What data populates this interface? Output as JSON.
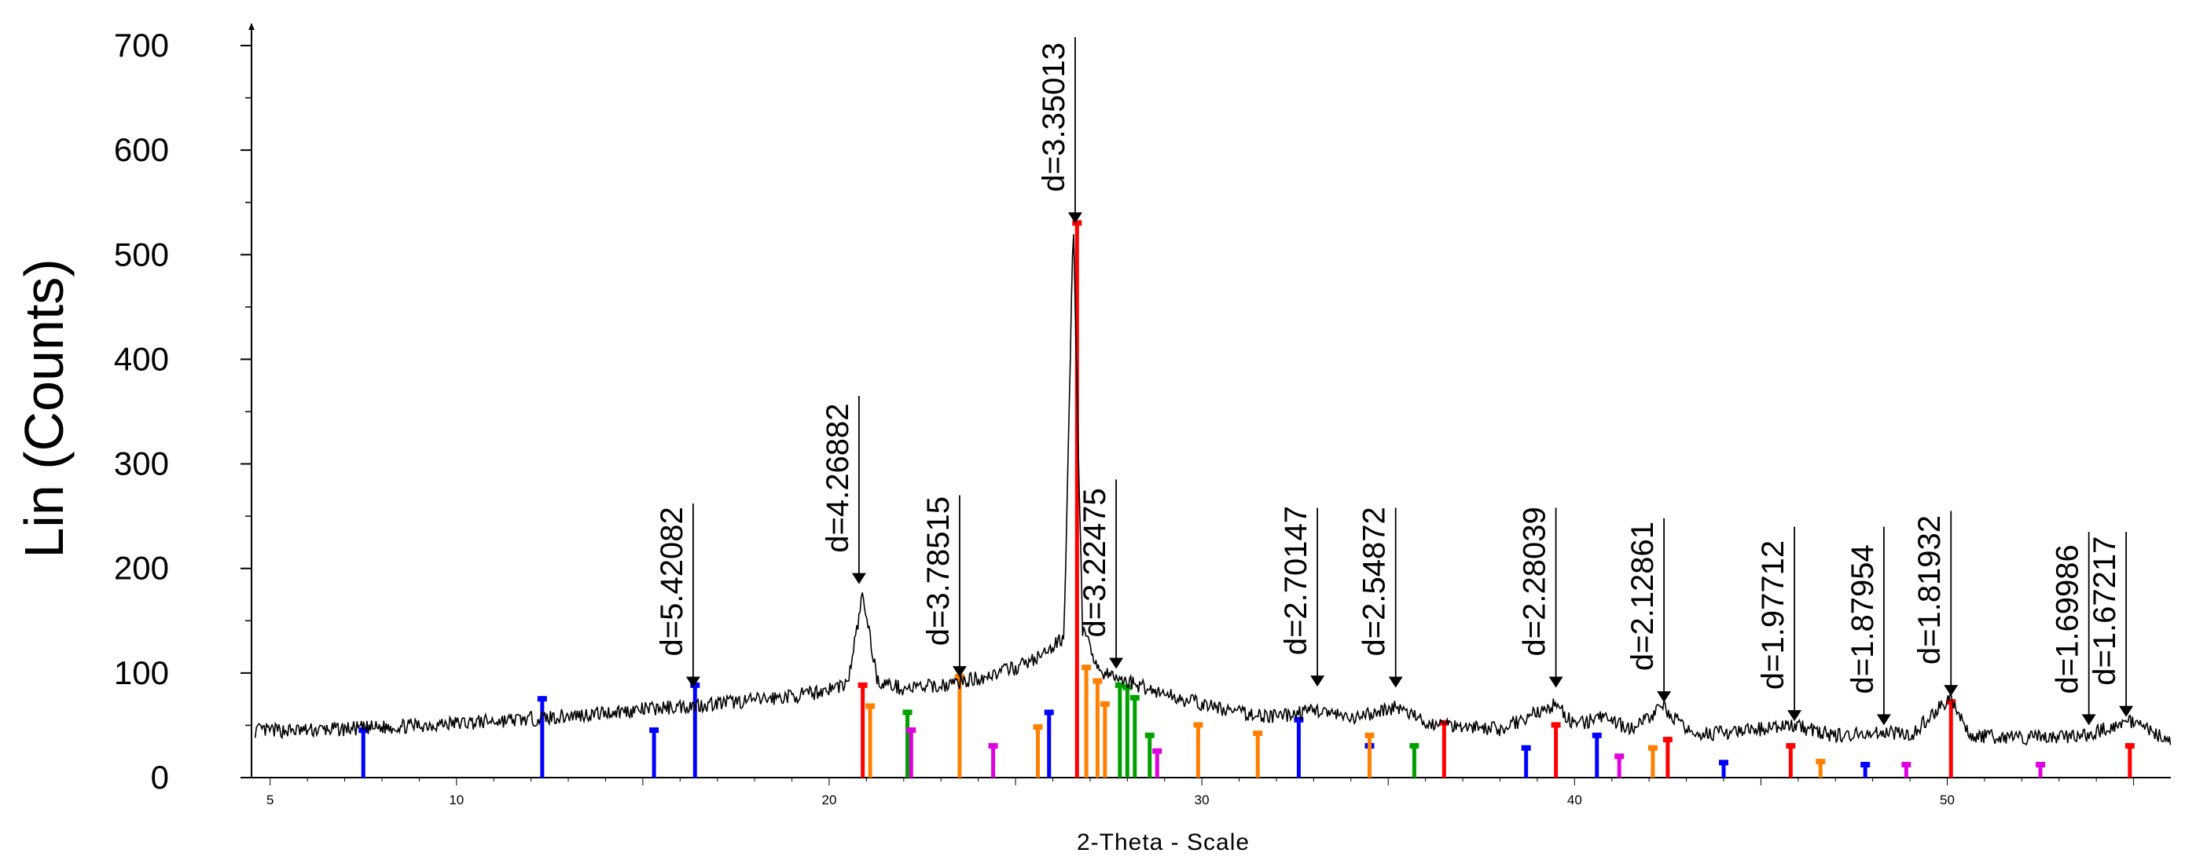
{
  "chart_data": {
    "type": "line",
    "xlabel": "2-Theta - Scale",
    "ylabel": "Lin (Counts)",
    "xlim": [
      4.5,
      56
    ],
    "ylim": [
      0,
      700
    ],
    "x_ticks": [
      "5",
      "10",
      "20",
      "30",
      "40",
      "50"
    ],
    "y_ticks": [
      "0",
      "100",
      "200",
      "300",
      "400",
      "500",
      "600",
      "700"
    ],
    "pattern": {
      "color": "#000000",
      "points": [
        [
          4.6,
          45
        ],
        [
          6,
          45
        ],
        [
          8,
          48
        ],
        [
          10,
          52
        ],
        [
          12,
          56
        ],
        [
          14,
          62
        ],
        [
          16,
          68
        ],
        [
          18,
          74
        ],
        [
          19.5,
          80
        ],
        [
          20.5,
          90
        ],
        [
          20.9,
          175
        ],
        [
          21.3,
          92
        ],
        [
          22,
          85
        ],
        [
          23,
          88
        ],
        [
          24,
          95
        ],
        [
          25,
          105
        ],
        [
          25.8,
          118
        ],
        [
          26.3,
          135
        ],
        [
          26.55,
          530
        ],
        [
          26.8,
          140
        ],
        [
          27.3,
          100
        ],
        [
          28,
          92
        ],
        [
          29,
          80
        ],
        [
          30,
          70
        ],
        [
          31,
          62
        ],
        [
          32,
          58
        ],
        [
          33.1,
          65
        ],
        [
          34,
          55
        ],
        [
          35.2,
          68
        ],
        [
          36,
          52
        ],
        [
          37,
          50
        ],
        [
          38,
          46
        ],
        [
          39.5,
          70
        ],
        [
          40,
          50
        ],
        [
          40.8,
          58
        ],
        [
          41.5,
          46
        ],
        [
          42.4,
          68
        ],
        [
          43,
          44
        ],
        [
          44,
          42
        ],
        [
          45.9,
          50
        ],
        [
          47,
          40
        ],
        [
          48.3,
          44
        ],
        [
          49,
          40
        ],
        [
          50.1,
          78
        ],
        [
          50.6,
          40
        ],
        [
          52,
          38
        ],
        [
          53.8,
          40
        ],
        [
          54.8,
          55
        ],
        [
          56,
          36
        ]
      ]
    },
    "peaks": [
      {
        "label": "d=5.42082",
        "x": 16.35,
        "y": 86,
        "top": 262
      },
      {
        "label": "d=4.26882",
        "x": 20.8,
        "y": 185,
        "top": 365
      },
      {
        "label": "d=3.78515",
        "x": 23.5,
        "y": 96,
        "top": 270
      },
      {
        "label": "d=3.35013",
        "x": 26.6,
        "y": 530,
        "top": 708
      },
      {
        "label": "d=3.22475",
        "x": 27.7,
        "y": 104,
        "top": 285
      },
      {
        "label": "d=2.70147",
        "x": 33.1,
        "y": 87,
        "top": 258
      },
      {
        "label": "d=2.54872",
        "x": 35.2,
        "y": 86,
        "top": 258
      },
      {
        "label": "d=2.28039",
        "x": 39.5,
        "y": 86,
        "top": 258
      },
      {
        "label": "d=2.12861",
        "x": 42.4,
        "y": 72,
        "top": 248
      },
      {
        "label": "d=1.97712",
        "x": 45.9,
        "y": 54,
        "top": 240
      },
      {
        "label": "d=1.87954",
        "x": 48.3,
        "y": 50,
        "top": 240
      },
      {
        "label": "d=1.81932",
        "x": 50.1,
        "y": 78,
        "top": 255
      },
      {
        "label": "d=1.69986",
        "x": 53.8,
        "y": 50,
        "top": 235
      },
      {
        "label": "d=1.67217",
        "x": 54.8,
        "y": 58,
        "top": 235
      }
    ],
    "reference_sticks": [
      {
        "color": "#ff0000",
        "items": [
          [
            20.9,
            88
          ],
          [
            26.65,
            530
          ],
          [
            36.5,
            52
          ],
          [
            39.5,
            50
          ],
          [
            42.5,
            36
          ],
          [
            45.8,
            30
          ],
          [
            50.1,
            72
          ],
          [
            54.9,
            30
          ]
        ]
      },
      {
        "color": "#0000ff",
        "items": [
          [
            7.5,
            45
          ],
          [
            12.3,
            75
          ],
          [
            15.3,
            45
          ],
          [
            16.4,
            88
          ],
          [
            25.9,
            62
          ],
          [
            32.6,
            55
          ],
          [
            34.5,
            30
          ],
          [
            38.7,
            28
          ],
          [
            40.6,
            40
          ],
          [
            44,
            14
          ],
          [
            47.8,
            12
          ]
        ]
      },
      {
        "color": "#ff8000",
        "items": [
          [
            21.1,
            68
          ],
          [
            23.5,
            96
          ],
          [
            25.6,
            48
          ],
          [
            26.9,
            105
          ],
          [
            27.2,
            92
          ],
          [
            27.4,
            70
          ],
          [
            29.9,
            50
          ],
          [
            31.5,
            42
          ],
          [
            34.5,
            40
          ],
          [
            42.1,
            28
          ],
          [
            46.6,
            15
          ]
        ]
      },
      {
        "color": "#00a000",
        "items": [
          [
            22.1,
            62
          ],
          [
            27.8,
            88
          ],
          [
            28.0,
            86
          ],
          [
            28.2,
            76
          ],
          [
            28.6,
            40
          ],
          [
            35.7,
            30
          ]
        ]
      },
      {
        "color": "#e000e0",
        "items": [
          [
            22.2,
            45
          ],
          [
            24.4,
            30
          ],
          [
            28.8,
            25
          ],
          [
            41.2,
            20
          ],
          [
            48.9,
            12
          ],
          [
            52.5,
            12
          ]
        ]
      }
    ]
  }
}
